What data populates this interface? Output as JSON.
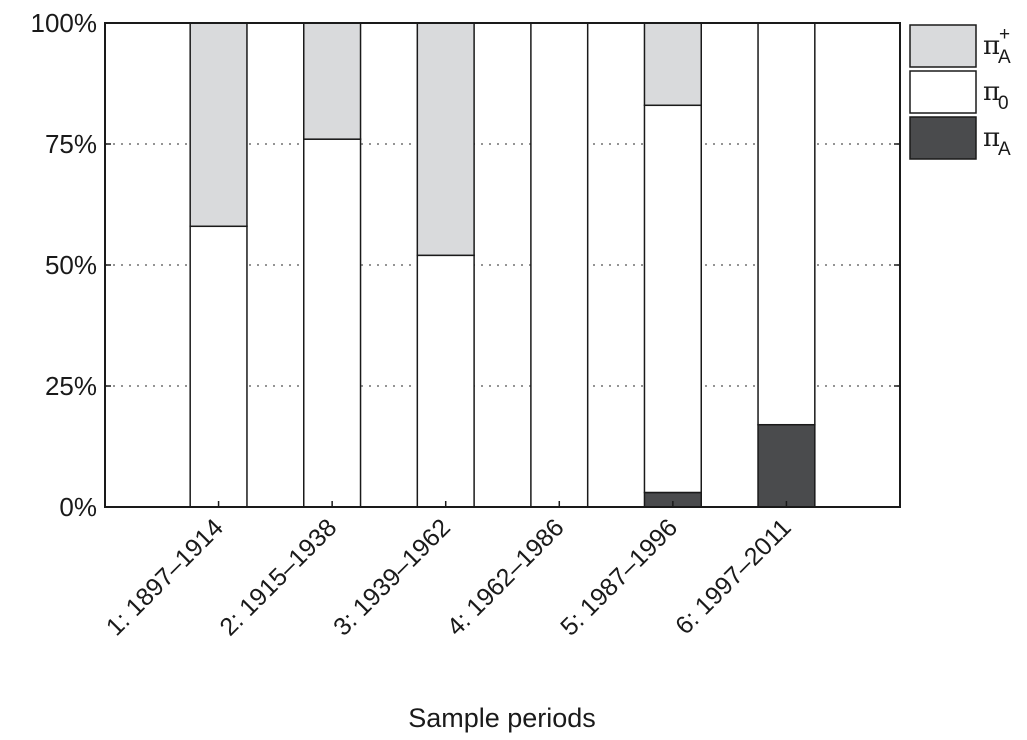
{
  "chart_data": {
    "type": "bar",
    "stacked": true,
    "percent": true,
    "xlabel": "Sample periods",
    "ylabel": "",
    "ylim": [
      0,
      100
    ],
    "yticks": [
      "0%",
      "25%",
      "50%",
      "75%",
      "100%"
    ],
    "ytick_values": [
      0,
      25,
      50,
      75,
      100
    ],
    "grid": "horizontal dotted",
    "legend_position": "outside-right",
    "categories": [
      "1: 1897–1914",
      "2: 1915–1938",
      "3: 1939–1962",
      "4: 1962–1986",
      "5: 1987–1996",
      "6: 1997–2011"
    ],
    "series": [
      {
        "key": "pi_A_minus",
        "symbol": "π",
        "sub": "A",
        "sup": "",
        "color": "#4a4b4d",
        "values": [
          0,
          0,
          0,
          0,
          3,
          17
        ]
      },
      {
        "key": "pi_0",
        "symbol": "π",
        "sub": "0",
        "sup": "",
        "color": "#ffffff",
        "values": [
          58,
          76,
          52,
          100,
          80,
          83
        ]
      },
      {
        "key": "pi_A_plus",
        "symbol": "π",
        "sub": "A",
        "sup": "+",
        "color": "#d9dadc",
        "values": [
          42,
          24,
          48,
          0,
          17,
          0
        ]
      }
    ]
  }
}
